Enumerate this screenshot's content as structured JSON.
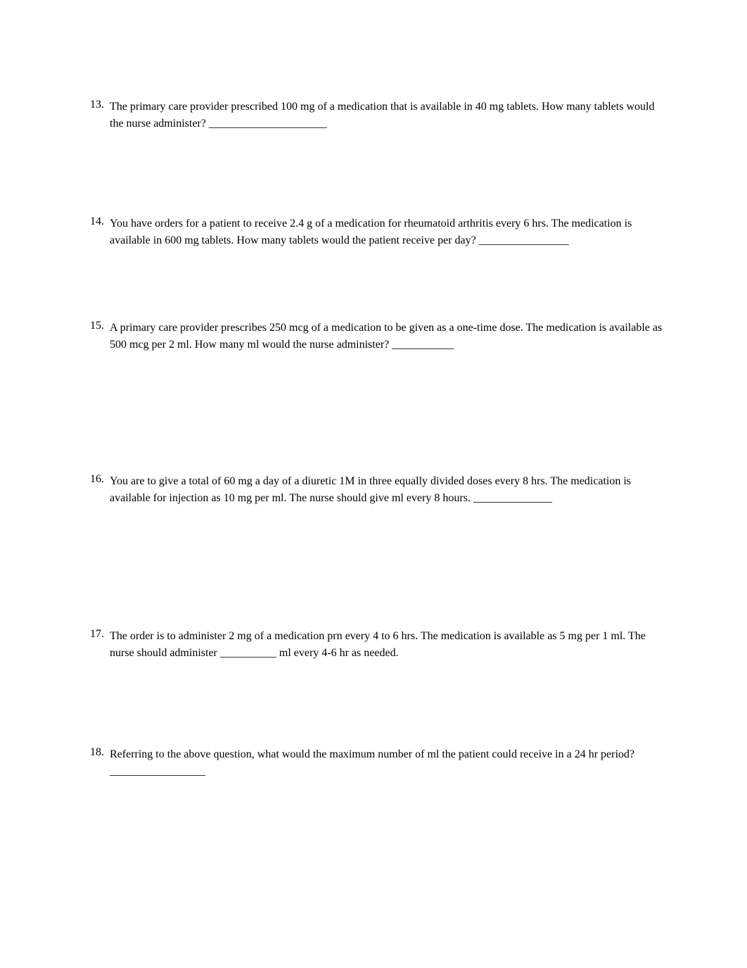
{
  "questions": {
    "q13": {
      "number": "13.",
      "text": "The primary care provider prescribed 100 mg of a medication that is available in 40 mg tablets. How many tablets would the nurse administer?   _____________________"
    },
    "q14": {
      "number": "14.",
      "text": "You have orders for a patient to receive 2.4 g of a medication for rheumatoid arthritis every 6 hrs. The medication is available in 600 mg tablets. How many tablets would the patient receive per day?  ________________"
    },
    "q15": {
      "number": "15.",
      "text": "A primary care provider prescribes 250 mcg of a medication to be given as a one-time dose. The medication is available as 500 mcg per 2 ml. How many ml would the nurse administer?   ___________"
    },
    "q16": {
      "number": "16.",
      "text": "You are to give a total of 60 mg a day of a diuretic 1M in three equally divided doses every 8 hrs. The medication is available for injection as 10 mg per ml. The nurse should give ml every 8 hours.   ______________"
    },
    "q17": {
      "number": "17.",
      "text": "The order is to administer 2 mg of a medication prn every 4 to 6 hrs. The medication is available as 5 mg per 1 ml. The nurse should administer __________ ml every 4-6 hr as needed."
    },
    "q18": {
      "number": "18.",
      "text": "Referring to the above question, what would the maximum number of ml the patient could receive in a 24 hr period?   _________________"
    }
  }
}
